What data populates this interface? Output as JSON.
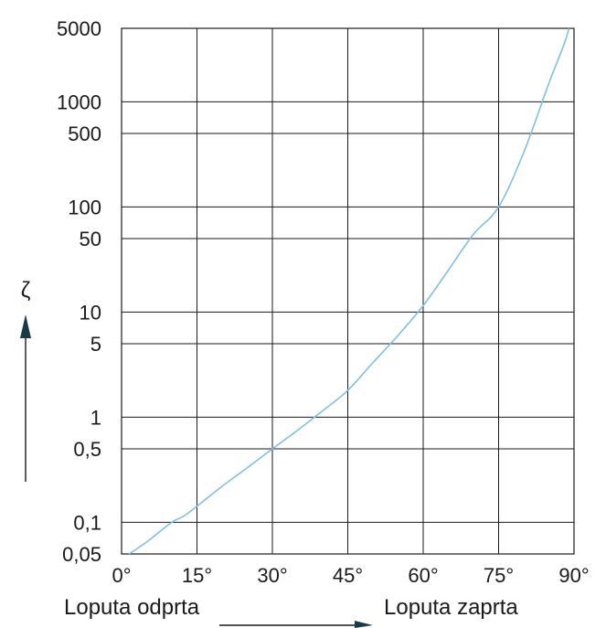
{
  "chart_data": {
    "type": "line",
    "title": "",
    "xlabel": "",
    "ylabel": "ζ",
    "x_scale": "linear",
    "y_scale": "log",
    "xlim": [
      0,
      90
    ],
    "ylim": [
      0.05,
      5000
    ],
    "x_ticks": [
      0,
      15,
      30,
      45,
      60,
      75,
      90
    ],
    "x_tick_labels": [
      "0°",
      "15°",
      "30°",
      "45°",
      "60°",
      "75°",
      "90°"
    ],
    "y_ticks": [
      0.05,
      0.1,
      0.5,
      1,
      5,
      10,
      50,
      100,
      500,
      1000,
      5000
    ],
    "y_tick_labels": [
      "0,05",
      "0,1",
      "0,5",
      "1",
      "5",
      "10",
      "50",
      "100",
      "500",
      "1000",
      "5000"
    ],
    "grid": true,
    "line_color": "#7fbfe6",
    "series": [
      {
        "x": [
          1.5,
          5,
          10,
          13,
          20,
          25,
          30,
          35,
          40,
          45,
          50,
          55,
          60,
          65,
          70,
          75,
          80,
          85,
          88,
          89
        ],
        "y": [
          0.05,
          0.065,
          0.1,
          0.12,
          0.22,
          0.33,
          0.5,
          0.75,
          1.15,
          1.8,
          3.3,
          6.0,
          11.5,
          25,
          55,
          100,
          330,
          1500,
          3500,
          5000
        ]
      }
    ],
    "annotations": {
      "left": "Loputa odprta",
      "right": "Loputa zaprta"
    }
  }
}
